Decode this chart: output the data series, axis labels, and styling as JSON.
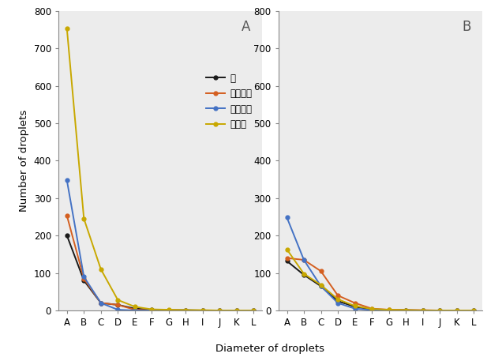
{
  "categories": [
    "A",
    "B",
    "C",
    "D",
    "E",
    "F",
    "G",
    "H",
    "I",
    "J",
    "K",
    "L"
  ],
  "panel_A": {
    "label": "A",
    "series": {
      "물": {
        "color": "#1a1a1a",
        "values": [
          200,
          80,
          20,
          15,
          5,
          2,
          1,
          1,
          0,
          0,
          0,
          0
        ]
      },
      "영일카바": {
        "color": "#d45f20",
        "values": [
          253,
          85,
          20,
          15,
          2,
          1,
          1,
          0,
          0,
          0,
          0,
          0
        ]
      },
      "마쿠피카": {
        "color": "#4472c4",
        "values": [
          347,
          90,
          20,
          2,
          0,
          0,
          0,
          0,
          0,
          0,
          0,
          0
        ]
      },
      "바로겐": {
        "color": "#c8a800",
        "values": [
          752,
          245,
          110,
          28,
          10,
          3,
          2,
          1,
          1,
          0,
          0,
          0
        ]
      }
    }
  },
  "panel_B": {
    "label": "B",
    "series": {
      "물": {
        "color": "#1a1a1a",
        "values": [
          132,
          95,
          65,
          25,
          10,
          3,
          1,
          1,
          0,
          0,
          0,
          0
        ]
      },
      "영일카바": {
        "color": "#d45f20",
        "values": [
          140,
          135,
          105,
          40,
          20,
          5,
          2,
          1,
          1,
          0,
          0,
          0
        ]
      },
      "마쿠피카": {
        "color": "#4472c4",
        "values": [
          248,
          135,
          65,
          20,
          5,
          1,
          0,
          0,
          0,
          0,
          0,
          0
        ]
      },
      "바로겐": {
        "color": "#c8a800",
        "values": [
          163,
          98,
          68,
          30,
          12,
          4,
          2,
          1,
          0,
          0,
          0,
          0
        ]
      }
    }
  },
  "ylim": [
    0,
    800
  ],
  "yticks": [
    0,
    100,
    200,
    300,
    400,
    500,
    600,
    700,
    800
  ],
  "xlabel": "Diameter of droplets",
  "ylabel": "Number of droplets",
  "legend_order": [
    "물",
    "영일카바",
    "마쿠피카",
    "바로겐"
  ],
  "bg_color": "#ececec"
}
